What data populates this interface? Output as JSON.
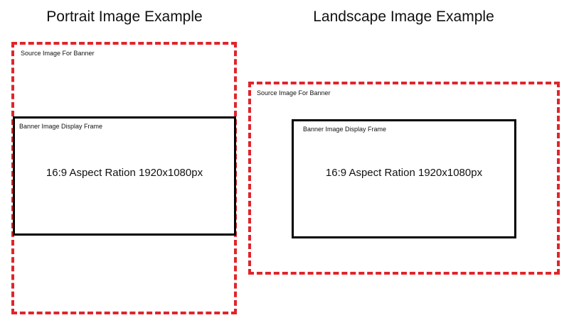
{
  "portrait": {
    "heading": "Portrait Image Example",
    "source_label": "Source Image For Banner",
    "display_label": "Banner Image Display Frame",
    "ratio_text": "16:9 Aspect Ration 1920x1080px"
  },
  "landscape": {
    "heading": "Landscape Image Example",
    "source_label": "Source Image For Banner",
    "display_label": "Banner Image Display Frame",
    "ratio_text": "16:9 Aspect Ration 1920x1080px"
  },
  "colors": {
    "source_frame_border": "#e0242b",
    "display_frame_border": "#000000"
  }
}
